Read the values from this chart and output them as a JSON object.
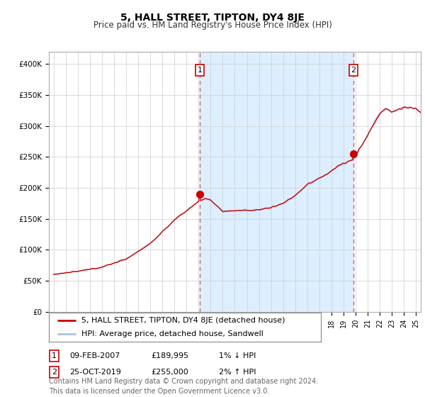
{
  "title": "5, HALL STREET, TIPTON, DY4 8JE",
  "subtitle": "Price paid vs. HM Land Registry's House Price Index (HPI)",
  "ylabel_ticks": [
    "£0",
    "£50K",
    "£100K",
    "£150K",
    "£200K",
    "£250K",
    "£300K",
    "£350K",
    "£400K"
  ],
  "ytick_values": [
    0,
    50000,
    100000,
    150000,
    200000,
    250000,
    300000,
    350000,
    400000
  ],
  "ylim": [
    0,
    420000
  ],
  "xlim_start": 1994.6,
  "xlim_end": 2025.4,
  "sale1_x": 2007.1,
  "sale1_y": 189995,
  "sale1_label": "1",
  "sale2_x": 2019.82,
  "sale2_y": 255000,
  "sale2_label": "2",
  "legend_line1": "5, HALL STREET, TIPTON, DY4 8JE (detached house)",
  "legend_line2": "HPI: Average price, detached house, Sandwell",
  "footer": "Contains HM Land Registry data © Crown copyright and database right 2024.\nThis data is licensed under the Open Government Licence v3.0.",
  "line_color_property": "#cc0000",
  "line_color_hpi": "#aac4e0",
  "dashed_color": "#cc6666",
  "shade_color": "#ddeeff",
  "background_color": "#ffffff",
  "grid_color": "#cccccc",
  "title_fontsize": 10,
  "subtitle_fontsize": 8.5,
  "tick_fontsize": 7.5,
  "legend_fontsize": 8,
  "footer_fontsize": 7,
  "ann_fontsize": 8
}
